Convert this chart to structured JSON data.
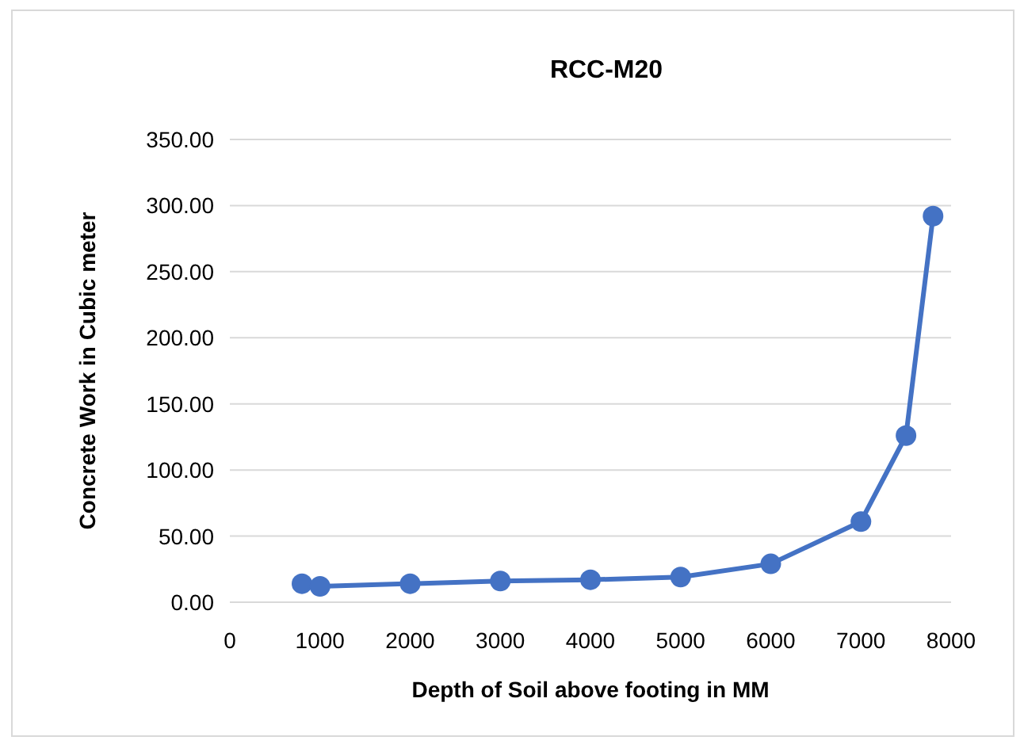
{
  "chart_data": {
    "type": "line",
    "title": "RCC-M20",
    "xlabel": "Depth of Soil above footing in MM",
    "ylabel": "Concrete Work in Cubic meter",
    "x": [
      800,
      1000,
      2000,
      3000,
      4000,
      5000,
      6000,
      7000,
      7500,
      7800
    ],
    "series": [
      {
        "color": "#4472c4",
        "values": [
          14,
          12,
          14,
          16,
          17,
          19,
          29,
          61,
          126,
          292
        ]
      }
    ],
    "xlim": [
      0,
      8000
    ],
    "xticks": [
      0,
      1000,
      2000,
      3000,
      4000,
      5000,
      6000,
      7000,
      8000
    ],
    "ylim": [
      0,
      350
    ],
    "yticks": [
      {
        "value": 0,
        "label": "0.00"
      },
      {
        "value": 50,
        "label": "50.00"
      },
      {
        "value": 100,
        "label": "100.00"
      },
      {
        "value": 150,
        "label": "150.00"
      },
      {
        "value": 200,
        "label": "200.00"
      },
      {
        "value": 250,
        "label": "250.00"
      },
      {
        "value": 300,
        "label": "300.00"
      },
      {
        "value": 350,
        "label": "350.00"
      }
    ],
    "grid": "y",
    "marker": "circle",
    "line_style": "solid"
  }
}
